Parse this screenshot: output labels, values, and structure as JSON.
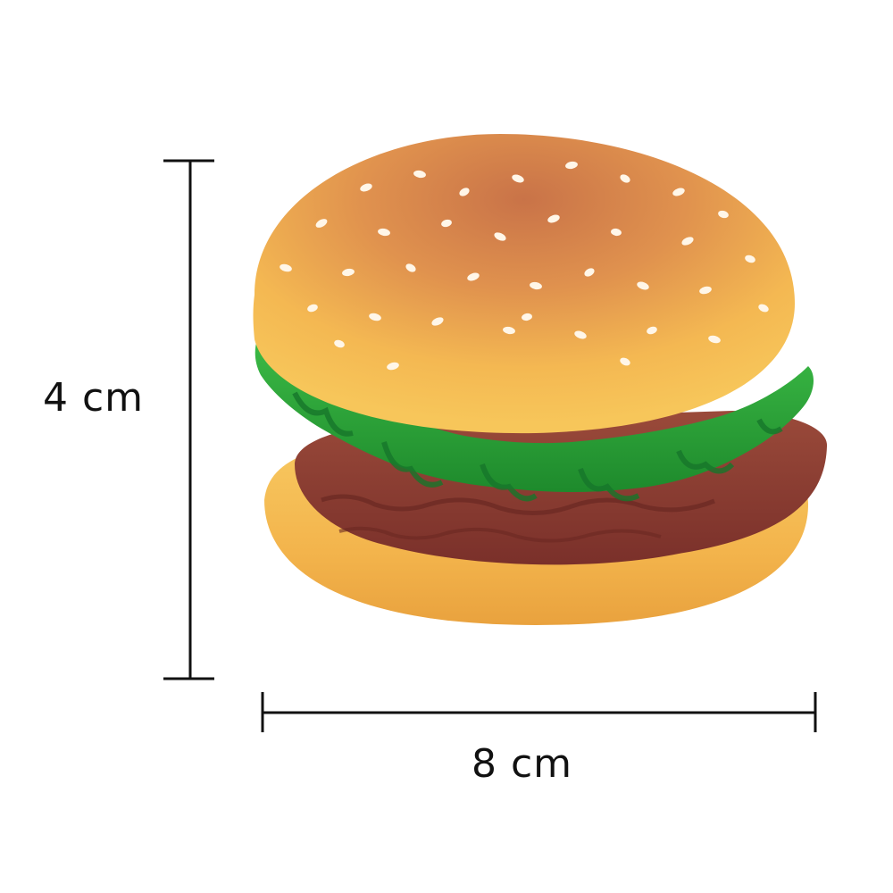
{
  "dimensions": {
    "height_label": "4 cm",
    "width_label": "8 cm"
  },
  "product": {
    "icon": "hamburger-toy-icon"
  },
  "colors": {
    "bun": "#f2b54a",
    "bun_top": "#d9844a",
    "lettuce": "#2fa83a",
    "patty": "#8a3a30",
    "sesame": "#fff6e8",
    "line": "#111111"
  }
}
